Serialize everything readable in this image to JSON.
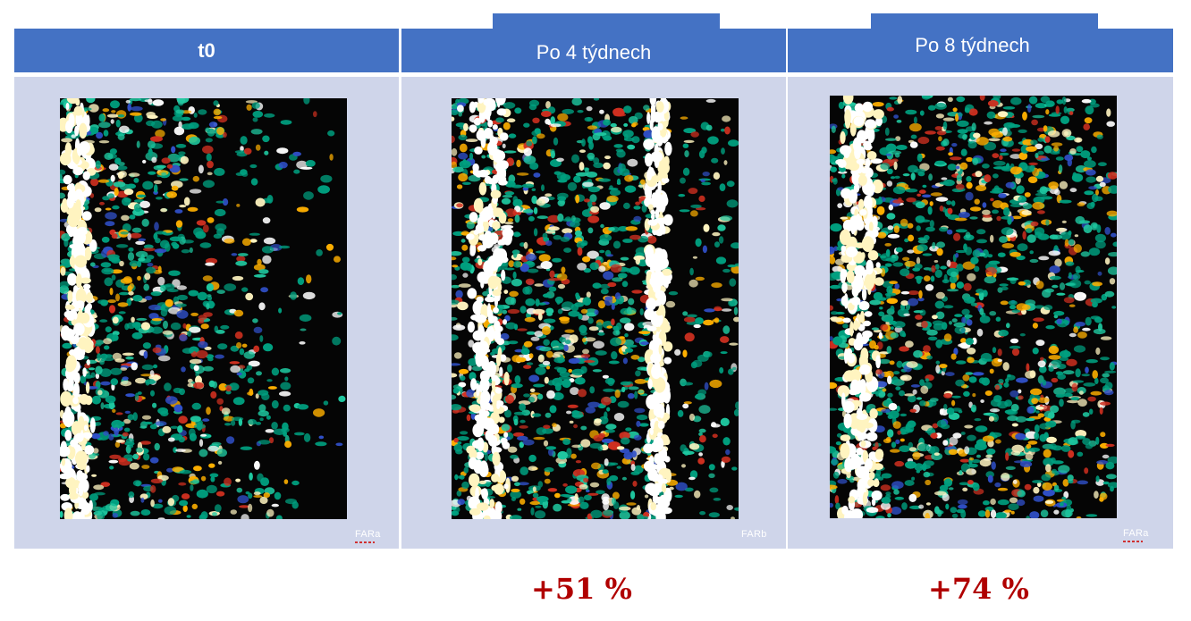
{
  "columns": [
    {
      "header": "t0",
      "mark": "FARa",
      "result": ""
    },
    {
      "header": "Po 4 týdnech",
      "mark": "FARb",
      "result": "+51 %"
    },
    {
      "header": "Po 8 týdnech",
      "mark": "FARa",
      "result": "+74 %"
    }
  ],
  "colors": {
    "header_bg": "#4472c4",
    "panel_bg": "#cfd5ea",
    "result_text": "#b00000",
    "scan_bg": "#050505",
    "scan_palette": [
      "#00a080",
      "#1fc8a0",
      "#3050c8",
      "#d03020",
      "#ffb000",
      "#fff4c0",
      "#ffffff"
    ]
  }
}
